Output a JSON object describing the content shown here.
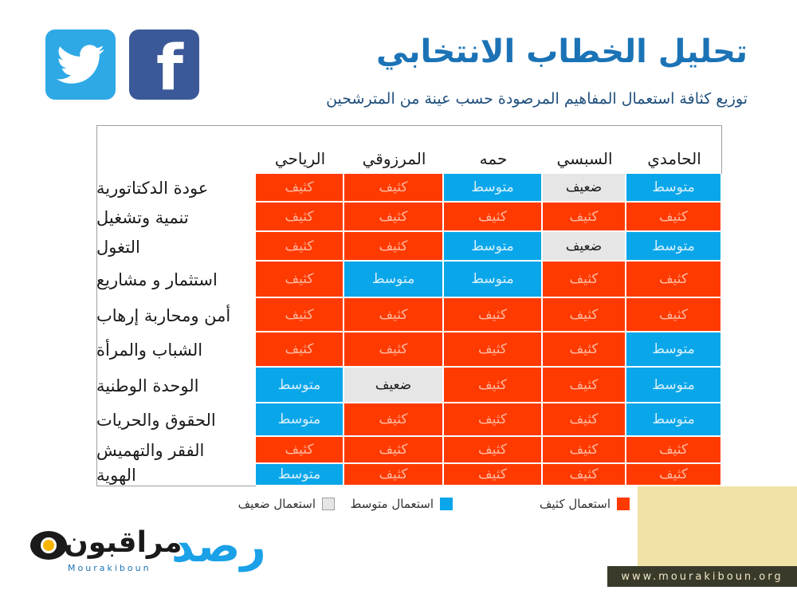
{
  "header": {
    "title": "تحليل الخطاب الانتخابي",
    "subtitle": "توزيع كثافة استعمال  المفاهيم المرصودة حسب عينة من المترشحين"
  },
  "social": {
    "facebook_icon": "facebook-icon",
    "twitter_icon": "twitter-icon",
    "facebook_color": "#3b5998",
    "twitter_color": "#2ea9e6"
  },
  "table": {
    "columns": [
      "الحامدي",
      "السبسي",
      "حمه",
      "المرزوقي",
      "الرياحي"
    ],
    "rows": [
      {
        "label": "عودة الدكتاتورية",
        "cells": [
          "متوسط",
          "ضعيف",
          "متوسط",
          "كثيف",
          "كثيف"
        ]
      },
      {
        "label": "تنمية وتشغيل",
        "cells": [
          "كثيف",
          "كثيف",
          "كثيف",
          "كثيف",
          "كثيف"
        ]
      },
      {
        "label": "التغول",
        "cells": [
          "متوسط",
          "ضعيف",
          "متوسط",
          "كثيف",
          "كثيف"
        ]
      },
      {
        "label": "استثمار و مشاريع",
        "cells": [
          "كثيف",
          "كثيف",
          "متوسط",
          "متوسط",
          "كثيف"
        ]
      },
      {
        "label": "أمن ومحاربة إرهاب",
        "cells": [
          "كثيف",
          "كثيف",
          "كثيف",
          "كثيف",
          "كثيف"
        ]
      },
      {
        "label": "الشباب والمرأة",
        "cells": [
          "متوسط",
          "كثيف",
          "كثيف",
          "كثيف",
          "كثيف"
        ]
      },
      {
        "label": "الوحدة الوطنية",
        "cells": [
          "متوسط",
          "كثيف",
          "كثيف",
          "ضعيف",
          "متوسط"
        ]
      },
      {
        "label": "الحقوق والحريات",
        "cells": [
          "متوسط",
          "كثيف",
          "كثيف",
          "كثيف",
          "متوسط"
        ]
      },
      {
        "label": "الفقر والتهميش",
        "cells": [
          "كثيف",
          "كثيف",
          "كثيف",
          "كثيف",
          "كثيف"
        ]
      },
      {
        "label": "الهوية",
        "cells": [
          "كثيف",
          "كثيف",
          "كثيف",
          "كثيف",
          "متوسط"
        ]
      }
    ],
    "value_classes": {
      "كثيف": "c-dense",
      "متوسط": "c-medium",
      "ضعيف": "c-weak"
    }
  },
  "legend": {
    "dense": "استعمال كثيف",
    "medium": "استعمال متوسط",
    "weak": "استعمال ضعيف",
    "dense_color": "#ff3a00",
    "medium_color": "#0aa6ea",
    "weak_color": "#e6e6e6"
  },
  "footer": {
    "logo_text": "مراقبون",
    "logo_sub": "Mourakiboun",
    "rasd": "رصد",
    "url": "www.mourakiboun.org"
  }
}
